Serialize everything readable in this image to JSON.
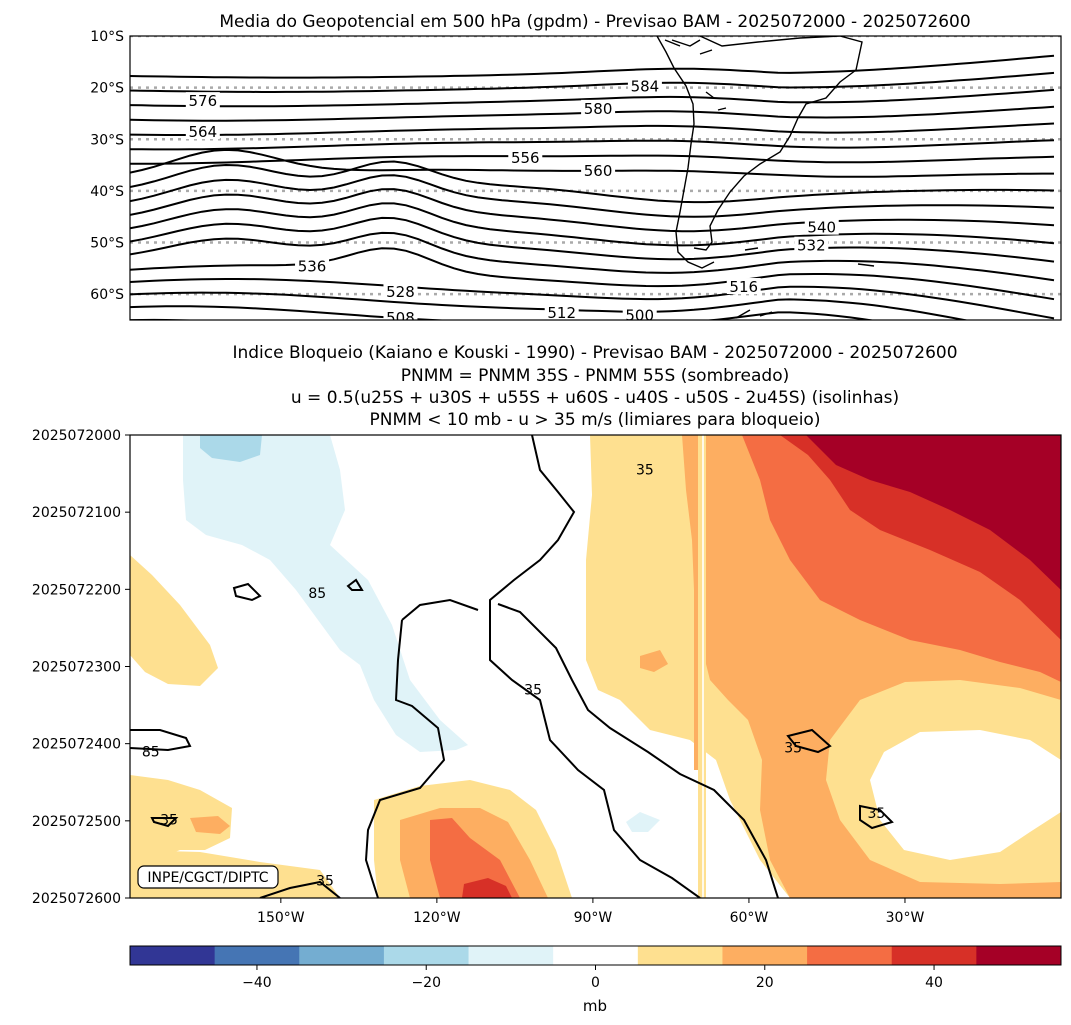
{
  "chart_data": [
    {
      "type": "contour",
      "panel": "top",
      "title": "Media do Geopotencial em 500 hPa (gpdm) - Previsao BAM - 2025072000 - 2025072600",
      "ylabels": [
        "10°S",
        "20°S",
        "30°S",
        "40°S",
        "50°S",
        "60°S"
      ],
      "lat_ticks": [
        -10,
        -20,
        -30,
        -40,
        -50,
        -60
      ],
      "lat_range": [
        -65,
        -10
      ],
      "contour_interval": 4,
      "contour_labels": [
        {
          "text": "584",
          "lon": -80,
          "lat": -20.2
        },
        {
          "text": "580",
          "lon": -89,
          "lat": -24.5
        },
        {
          "text": "576",
          "lon": -165,
          "lat": -23
        },
        {
          "text": "564",
          "lon": -165,
          "lat": -29
        },
        {
          "text": "556",
          "lon": -103,
          "lat": -34
        },
        {
          "text": "560",
          "lon": -89,
          "lat": -36.5
        },
        {
          "text": "536",
          "lon": -144,
          "lat": -55
        },
        {
          "text": "528",
          "lon": -127,
          "lat": -60
        },
        {
          "text": "512",
          "lon": -96,
          "lat": -64
        },
        {
          "text": "500",
          "lon": -81,
          "lat": -64.5
        },
        {
          "text": "508",
          "lon": -127,
          "lat": -65
        },
        {
          "text": "540",
          "lon": -46,
          "lat": -47.5
        },
        {
          "text": "532",
          "lon": -48,
          "lat": -51
        },
        {
          "text": "516",
          "lon": -61,
          "lat": -59
        }
      ]
    },
    {
      "type": "hovmoller",
      "panel": "bottom",
      "title_lines": [
        "Indice Bloqueio (Kaiano e Kouski - 1990) - Previsao BAM - 2025072000 - 2025072600",
        "PNMM = PNMM 35S - PNMM 55S (sombreado)",
        "u = 0.5(u25S + u30S + u55S + u60S - u40S - u50S - 2u45S) (isolinhas)",
        "PNMM < 10 mb - u > 35 m/s (limiares para bloqueio)"
      ],
      "times": [
        "2025072000",
        "2025072100",
        "2025072200",
        "2025072300",
        "2025072400",
        "2025072500",
        "2025072600"
      ],
      "xticks": [
        "150°W",
        "120°W",
        "90°W",
        "60°W",
        "30°W"
      ],
      "xtick_values": [
        -150,
        -120,
        -90,
        -60,
        -30
      ],
      "lon_range": [
        -179,
        0
      ],
      "contour_labels": [
        {
          "text": "35",
          "lon": -80,
          "time": 0.45
        },
        {
          "text": "85",
          "lon": -143,
          "time": 2.05
        },
        {
          "text": "35",
          "lon": -101.5,
          "time": 3.3
        },
        {
          "text": "85",
          "lon": -175,
          "time": 4.1
        },
        {
          "text": "35",
          "lon": -51.5,
          "time": 4.05
        },
        {
          "text": "35",
          "lon": -35.5,
          "time": 4.9
        },
        {
          "text": "35",
          "lon": -171.5,
          "time": 4.98
        },
        {
          "text": "35",
          "lon": -141.5,
          "time": 5.77
        }
      ],
      "credit": "INPE/CGCT/DIPTC"
    }
  ],
  "colorbar": {
    "label": "mb",
    "levels": [
      -55,
      -45,
      -35,
      -25,
      -15,
      -5,
      5,
      15,
      25,
      35,
      45,
      55
    ],
    "ticks": [
      "−40",
      "−20",
      "0",
      "20",
      "40"
    ],
    "tick_values": [
      -40,
      -20,
      0,
      20,
      40
    ],
    "colors": [
      "#313695",
      "#4575b4",
      "#74add1",
      "#abd9e9",
      "#e0f3f8",
      "#ffffff",
      "#fee090",
      "#fdae61",
      "#f46d43",
      "#d73027",
      "#a50026"
    ]
  }
}
